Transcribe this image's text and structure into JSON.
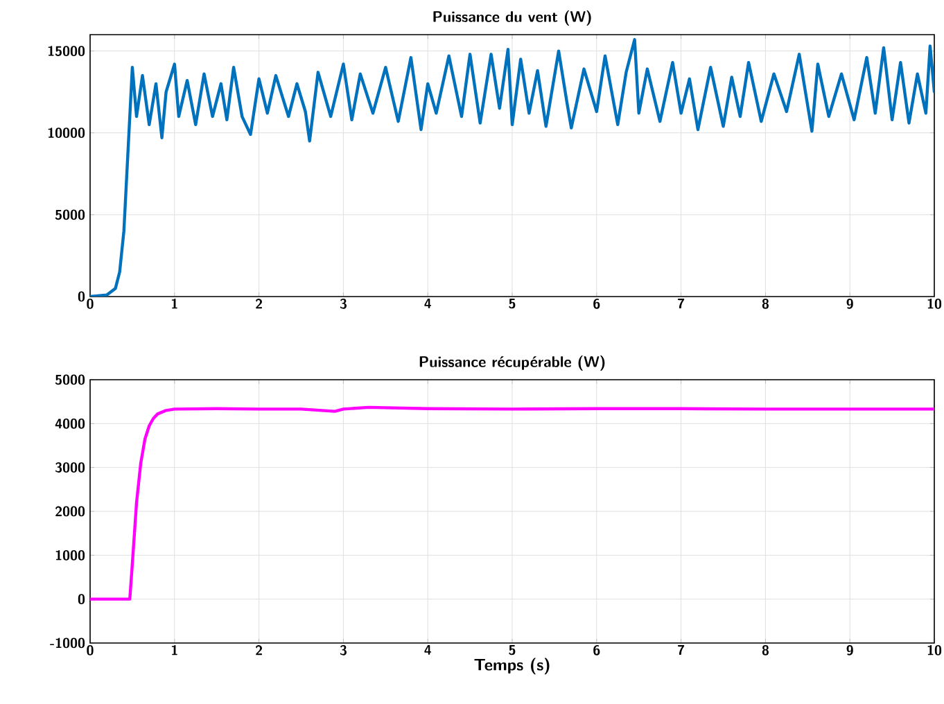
{
  "chart_data": [
    {
      "type": "line",
      "title": "Puissance du vent (W)",
      "xlim": [
        0,
        10
      ],
      "ylim": [
        0,
        16000
      ],
      "xticks": [
        0,
        1,
        2,
        3,
        4,
        5,
        6,
        7,
        8,
        9,
        10
      ],
      "yticks": [
        0,
        5000,
        10000,
        15000
      ],
      "grid": true,
      "series": [
        {
          "color": "#0072bd",
          "x": [
            0,
            0.2,
            0.3,
            0.35,
            0.4,
            0.44,
            0.47,
            0.5,
            0.55,
            0.62,
            0.7,
            0.78,
            0.85,
            0.9,
            1.0,
            1.05,
            1.15,
            1.25,
            1.35,
            1.45,
            1.55,
            1.62,
            1.7,
            1.8,
            1.9,
            2.0,
            2.1,
            2.2,
            2.35,
            2.45,
            2.55,
            2.6,
            2.7,
            2.85,
            3.0,
            3.1,
            3.2,
            3.35,
            3.5,
            3.65,
            3.8,
            3.92,
            4.0,
            4.1,
            4.25,
            4.4,
            4.5,
            4.62,
            4.75,
            4.85,
            4.95,
            5.0,
            5.1,
            5.2,
            5.3,
            5.4,
            5.55,
            5.65,
            5.7,
            5.85,
            6.0,
            6.1,
            6.25,
            6.35,
            6.45,
            6.5,
            6.6,
            6.75,
            6.9,
            7.0,
            7.1,
            7.2,
            7.35,
            7.5,
            7.6,
            7.7,
            7.8,
            7.95,
            8.1,
            8.25,
            8.4,
            8.55,
            8.62,
            8.75,
            8.9,
            9.05,
            9.2,
            9.3,
            9.4,
            9.5,
            9.6,
            9.7,
            9.8,
            9.9,
            9.95,
            10.0
          ],
          "values": [
            0,
            100,
            500,
            1500,
            4000,
            8000,
            11000,
            14000,
            11000,
            13500,
            10500,
            13000,
            9700,
            12500,
            14200,
            11000,
            13200,
            10500,
            13600,
            11000,
            13000,
            10800,
            14000,
            11000,
            9900,
            13300,
            11200,
            13500,
            11000,
            13000,
            11300,
            9500,
            13700,
            11000,
            14200,
            10800,
            13600,
            11200,
            14000,
            10700,
            14600,
            10200,
            13000,
            11200,
            14700,
            11000,
            14800,
            10600,
            14800,
            11500,
            15100,
            10500,
            14500,
            11200,
            13800,
            10400,
            15000,
            11800,
            10300,
            13900,
            11300,
            14700,
            10500,
            13700,
            15700,
            11200,
            13900,
            10700,
            14300,
            11200,
            13300,
            10200,
            14000,
            10400,
            13400,
            11000,
            14300,
            10700,
            13600,
            11300,
            14800,
            10100,
            14200,
            11000,
            13600,
            10800,
            14600,
            11200,
            15200,
            10800,
            14300,
            10600,
            13600,
            11200,
            15300,
            12500
          ]
        }
      ]
    },
    {
      "type": "line",
      "title": "Puissance récupérable (W)",
      "xlabel": "Temps (s)",
      "xlim": [
        0,
        10
      ],
      "ylim": [
        -1000,
        5000
      ],
      "xticks": [
        0,
        1,
        2,
        3,
        4,
        5,
        6,
        7,
        8,
        9,
        10
      ],
      "yticks": [
        -1000,
        0,
        1000,
        2000,
        3000,
        4000,
        5000
      ],
      "grid": true,
      "series": [
        {
          "color": "#ff00ff",
          "x": [
            0,
            0.47,
            0.5,
            0.55,
            0.6,
            0.65,
            0.7,
            0.75,
            0.8,
            0.9,
            1.0,
            1.5,
            2.0,
            2.5,
            2.9,
            3.0,
            3.3,
            4.0,
            5.0,
            6.0,
            7.0,
            8.0,
            9.0,
            10.0
          ],
          "values": [
            0,
            0,
            800,
            2200,
            3100,
            3650,
            3950,
            4120,
            4220,
            4300,
            4330,
            4340,
            4330,
            4330,
            4280,
            4330,
            4370,
            4340,
            4330,
            4340,
            4340,
            4330,
            4330,
            4330
          ]
        }
      ]
    }
  ]
}
